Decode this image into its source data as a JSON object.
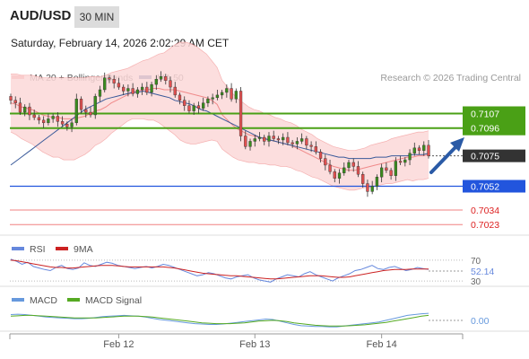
{
  "header": {
    "symbol": "AUD/USD",
    "timeframe": "30 MIN",
    "datetime": "Saturday, February 14, 2026 2:02:29 AM CET"
  },
  "colors": {
    "bollinger": "#f08a8a",
    "bollinger_fill": "#fbd8d8",
    "ma50": "#3a5a9a",
    "green": "#4aa016",
    "blue": "#2255dd",
    "red": "#f08080",
    "candle_up": "#3a8c1e",
    "candle_down": "#e05050",
    "price_box": "#333333",
    "rsi": "#6688dd",
    "rsi_ma": "#cc2222",
    "macd": "#6699dd",
    "macd_signal": "#55aa22"
  },
  "main_legend": [
    {
      "name": "MA 20 + Bollinger Bands",
      "color": "#f08a8a"
    },
    {
      "name": "MA 50",
      "color": "#3a5a9a"
    }
  ],
  "copyright": "Research © 2026 Trading Central",
  "chart_data": [
    {
      "type": "candlestick",
      "ylim": [
        7015,
        7125
      ],
      "x_ticks": [
        {
          "label": "Feb 12",
          "index": 23
        },
        {
          "label": "Feb 13",
          "index": 52
        },
        {
          "label": "Feb 14",
          "index": 79
        }
      ],
      "levels": [
        {
          "label": "0.7107",
          "value": 7107,
          "kind": "green"
        },
        {
          "label": "0.7096",
          "value": 7096,
          "kind": "green"
        },
        {
          "label": "0.7075",
          "value": 7075,
          "kind": "current"
        },
        {
          "label": "0.7052",
          "value": 7052,
          "kind": "blue"
        },
        {
          "label": "0.7034",
          "value": 7034,
          "kind": "red"
        },
        {
          "label": "0.7023",
          "value": 7023,
          "kind": "red"
        }
      ],
      "close": [
        7117,
        7115,
        7108,
        7112,
        7106,
        7104,
        7102,
        7100,
        7103,
        7105,
        7101,
        7099,
        7097,
        7100,
        7118,
        7110,
        7108,
        7106,
        7120,
        7125,
        7134,
        7133,
        7130,
        7127,
        7124,
        7126,
        7122,
        7125,
        7127,
        7123,
        7129,
        7133,
        7135,
        7132,
        7127,
        7121,
        7117,
        7113,
        7109,
        7113,
        7111,
        7115,
        7118,
        7119,
        7121,
        7123,
        7126,
        7118,
        7124,
        7090,
        7082,
        7086,
        7088,
        7089,
        7086,
        7090,
        7088,
        7087,
        7089,
        7085,
        7084,
        7086,
        7088,
        7083,
        7082,
        7078,
        7073,
        7068,
        7063,
        7058,
        7062,
        7066,
        7070,
        7067,
        7061,
        7054,
        7048,
        7052,
        7059,
        7066,
        7064,
        7060,
        7071,
        7070,
        7072,
        7077,
        7081,
        7079,
        7083,
        7075
      ],
      "ma20": [
        7115,
        7114,
        7112,
        7111,
        7110,
        7108,
        7106,
        7105,
        7104,
        7104,
        7103,
        7103,
        7103,
        7104,
        7105,
        7107,
        7109,
        7110,
        7112,
        7115,
        7117,
        7119,
        7121,
        7123,
        7124,
        7125,
        7125,
        7126,
        7126,
        7125,
        7125,
        7125,
        7124,
        7123,
        7122,
        7121,
        7120,
        7119,
        7117,
        7114,
        7106,
        7102,
        7098,
        7095,
        7093,
        7091,
        7090,
        7089,
        7088,
        7087,
        7086,
        7085,
        7084,
        7083,
        7081,
        7079,
        7077,
        7075,
        7073,
        7071,
        7069,
        7067,
        7066,
        7065,
        7064,
        7064,
        7065,
        7066,
        7067,
        7068,
        7069,
        7070,
        7071,
        7072,
        7073,
        7074,
        7074,
        7075,
        7075,
        7076
      ],
      "ma50": [
        7068,
        7071,
        7074,
        7077,
        7080,
        7083,
        7086,
        7089,
        7092,
        7095,
        7098,
        7101,
        7104,
        7107,
        7110,
        7112,
        7114,
        7116,
        7118,
        7119,
        7120,
        7121,
        7122,
        7123,
        7123,
        7124,
        7123,
        7122,
        7121,
        7120,
        7119,
        7117,
        7116,
        7115,
        7114,
        7112,
        7110,
        7109,
        7107,
        7105,
        7103,
        7101,
        7099,
        7097,
        7095,
        7093,
        7091,
        7089,
        7088,
        7087,
        7086,
        7085,
        7084,
        7083,
        7082,
        7081,
        7080,
        7079,
        7078,
        7077,
        7076,
        7075,
        7074,
        7074,
        7073,
        7073,
        7073,
        7073,
        7073,
        7074,
        7074,
        7074,
        7075,
        7075,
        7075,
        7075,
        7076,
        7076,
        7076,
        7077
      ],
      "bb_width": [
        22,
        23,
        24,
        25,
        26,
        27,
        28,
        29,
        30,
        30,
        31,
        31,
        31,
        30,
        29,
        28,
        26,
        25,
        24,
        23,
        22,
        21,
        20,
        20,
        21,
        22,
        23,
        24,
        26,
        28,
        31,
        34,
        37,
        38,
        38,
        37,
        35,
        33,
        30,
        28,
        26,
        25,
        24,
        23,
        22,
        21,
        20,
        20,
        19,
        19,
        18,
        18,
        17,
        17,
        17,
        16,
        16,
        16,
        15,
        15,
        15,
        15,
        15,
        15,
        15,
        15,
        15,
        15,
        16,
        16,
        16,
        16,
        17,
        17,
        17,
        17,
        18,
        18,
        18,
        18
      ]
    },
    {
      "type": "line",
      "name": "RSI",
      "legend": [
        {
          "name": "RSI",
          "color": "#6688dd"
        },
        {
          "name": "9MA",
          "color": "#cc2222"
        }
      ],
      "ylim": [
        25,
        75
      ],
      "levels": [
        {
          "label": "70",
          "value": 70
        },
        {
          "label": "30",
          "value": 30
        }
      ],
      "value_label": "52.14",
      "series": [
        {
          "name": "RSI",
          "values": [
            72,
            68,
            62,
            66,
            58,
            55,
            52,
            50,
            56,
            60,
            54,
            52,
            55,
            65,
            60,
            58,
            62,
            66,
            64,
            60,
            58,
            56,
            54,
            56,
            58,
            55,
            58,
            62,
            60,
            56,
            52,
            48,
            44,
            40,
            42,
            46,
            44,
            40,
            36,
            34,
            38,
            40,
            42,
            36,
            32,
            30,
            28,
            34,
            38,
            42,
            40,
            38,
            44,
            48,
            42,
            38,
            34,
            30,
            36,
            40,
            44,
            50,
            52,
            56,
            60,
            54,
            52,
            56,
            58,
            54,
            50,
            52,
            56,
            54,
            52
          ]
        },
        {
          "name": "9MA",
          "values": [
            70,
            69,
            67,
            65,
            63,
            61,
            59,
            57,
            56,
            56,
            55,
            55,
            56,
            57,
            58,
            59,
            60,
            60,
            60,
            59,
            58,
            57,
            57,
            57,
            57,
            57,
            57,
            57,
            56,
            55,
            53,
            51,
            49,
            47,
            45,
            44,
            43,
            42,
            41,
            40,
            40,
            39,
            38,
            37,
            36,
            35,
            34,
            34,
            35,
            36,
            37,
            38,
            39,
            40,
            40,
            40,
            39,
            38,
            37,
            37,
            38,
            40,
            42,
            44,
            46,
            48,
            50,
            51,
            52,
            52,
            52,
            53,
            53,
            53,
            53
          ]
        }
      ]
    },
    {
      "type": "line",
      "name": "MACD",
      "legend": [
        {
          "name": "MACD",
          "color": "#6699dd"
        },
        {
          "name": "MACD Signal",
          "color": "#55aa22"
        }
      ],
      "ylim": [
        -0.0035,
        0.0035
      ],
      "value_label": "0.00",
      "series": [
        {
          "name": "MACD",
          "values": [
            0.0012,
            0.0013,
            0.0012,
            0.001,
            0.0008,
            0.0006,
            0.0005,
            0.0004,
            0.0003,
            0.0002,
            0.0002,
            0.0003,
            0.0005,
            0.0007,
            0.0008,
            0.0009,
            0.001,
            0.0009,
            0.0008,
            0.0006,
            0.0003,
            0.0,
            -0.0002,
            -0.0004,
            -0.0006,
            -0.0008,
            -0.001,
            -0.0011,
            -0.0012,
            -0.0012,
            -0.0011,
            -0.0009,
            -0.0007,
            -0.0005,
            -0.0003,
            -0.0001,
            0.0001,
            0.0,
            -0.0004,
            -0.0008,
            -0.0012,
            -0.0015,
            -0.0016,
            -0.0017,
            -0.0017,
            -0.0018,
            -0.0018,
            -0.0016,
            -0.0014,
            -0.0012,
            -0.001,
            -0.0008,
            -0.0006,
            -0.0002,
            0.0002,
            0.0006,
            0.001,
            0.0012,
            0.0014,
            0.0015
          ]
        },
        {
          "name": "MACD Signal",
          "values": [
            0.0008,
            0.0009,
            0.001,
            0.001,
            0.0009,
            0.0008,
            0.0007,
            0.0006,
            0.0005,
            0.0004,
            0.0004,
            0.0004,
            0.0004,
            0.0005,
            0.0006,
            0.0007,
            0.0008,
            0.0008,
            0.0008,
            0.0007,
            0.0006,
            0.0004,
            0.0002,
            0.0,
            -0.0002,
            -0.0004,
            -0.0006,
            -0.0008,
            -0.0009,
            -0.001,
            -0.001,
            -0.001,
            -0.0009,
            -0.0008,
            -0.0006,
            -0.0004,
            -0.0003,
            -0.0002,
            -0.0003,
            -0.0005,
            -0.0008,
            -0.001,
            -0.0012,
            -0.0014,
            -0.0015,
            -0.0016,
            -0.0016,
            -0.0016,
            -0.0015,
            -0.0014,
            -0.0013,
            -0.0011,
            -0.0009,
            -0.0007,
            -0.0004,
            -0.0001,
            0.0002,
            0.0005,
            0.0008,
            0.001
          ]
        }
      ]
    }
  ]
}
